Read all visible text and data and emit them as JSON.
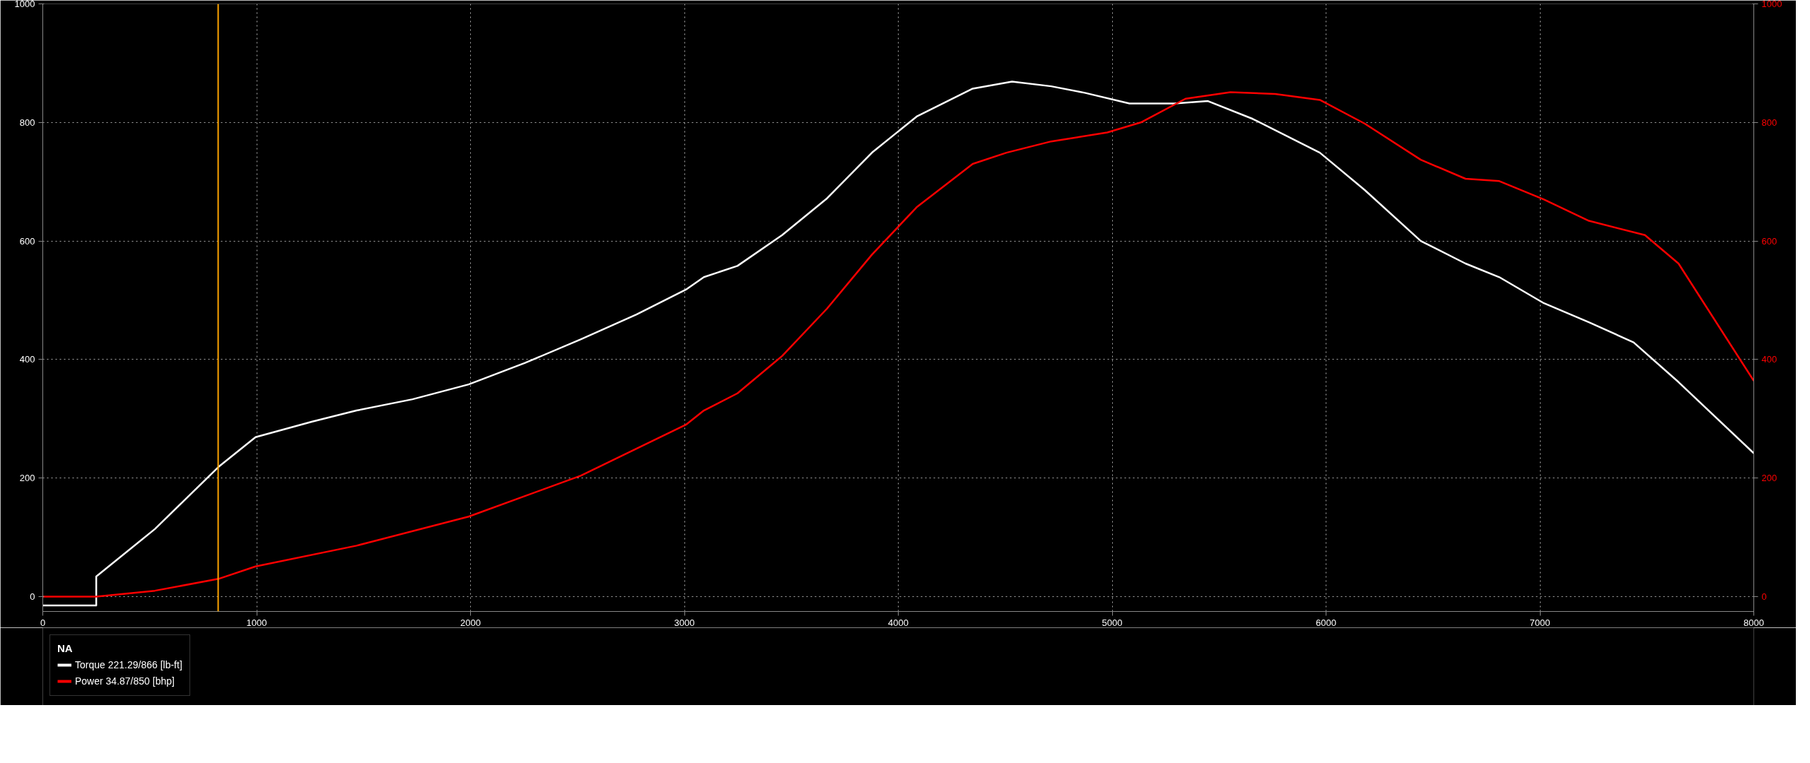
{
  "chart_data": {
    "type": "line",
    "x": [
      0,
      250,
      250,
      524,
      822,
      995,
      1257,
      1467,
      1729,
      1991,
      2253,
      2515,
      2776,
      3007,
      3091,
      3248,
      3457,
      3667,
      3877,
      4086,
      4348,
      4532,
      4715,
      4872,
      5081,
      5291,
      5448,
      5657,
      5971,
      6181,
      6443,
      6652,
      6810,
      7019,
      7229,
      7438,
      7648,
      8000
    ],
    "series": [
      {
        "name": "Torque 221.29/866 [lb-ft]",
        "color": "#ffffff",
        "values": [
          -15,
          -15,
          34,
          114,
          219,
          269,
          295,
          314,
          333,
          358,
          394,
          434,
          476,
          518,
          539,
          558,
          610,
          672,
          749,
          810,
          857,
          869,
          861,
          850,
          832,
          832,
          836,
          806,
          749,
          686,
          600,
          562,
          539,
          495,
          463,
          429,
          362,
          242
        ]
      },
      {
        "name": "Power 34.87/850 [bhp]",
        "color": "#ff0000",
        "axis": "y2",
        "x": [
          0,
          250,
          524,
          822,
          995,
          1467,
          1991,
          2515,
          3007,
          3091,
          3248,
          3457,
          3667,
          3877,
          4086,
          4348,
          4506,
          4715,
          4977,
          5134,
          5343,
          5553,
          5762,
          5971,
          6181,
          6443,
          6652,
          6810,
          7019,
          7229,
          7491,
          7648,
          8000
        ],
        "values": [
          0,
          0,
          10,
          30,
          51,
          86,
          135,
          204,
          290,
          314,
          343,
          406,
          486,
          577,
          657,
          730,
          749,
          768,
          783,
          800,
          840,
          851,
          848,
          838,
          798,
          737,
          705,
          701,
          670,
          634,
          610,
          562,
          364
        ]
      }
    ],
    "xlim": [
      0,
      8000
    ],
    "xticks": [
      0,
      1000,
      2000,
      3000,
      4000,
      5000,
      6000,
      7000,
      8000
    ],
    "ylim": [
      -25,
      1000
    ],
    "yticks": [
      0,
      200,
      400,
      600,
      800,
      1000
    ],
    "y2lim": [
      -25,
      1000
    ],
    "y2ticks": [
      0,
      200,
      400,
      600,
      800,
      1000
    ],
    "ref_lines": [
      {
        "axis": "x",
        "value": 820,
        "label": null,
        "color": "#ffa500"
      }
    ],
    "legend_title": "NA",
    "legend": "bottom left",
    "grid": true,
    "line_style": "solid",
    "marker": "none"
  }
}
